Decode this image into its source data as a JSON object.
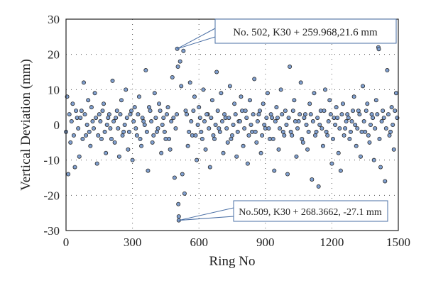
{
  "chart_data": {
    "type": "scatter",
    "xlabel": "Ring No",
    "ylabel": "Vertical Deviation (mm)",
    "xlim": [
      0,
      1500
    ],
    "ylim": [
      -30,
      30
    ],
    "xticks": [
      0,
      300,
      600,
      900,
      1200,
      1500
    ],
    "yticks": [
      -30,
      -20,
      -10,
      0,
      10,
      20,
      30
    ],
    "grid": "dotted",
    "marker_fill": "#7f9fcf",
    "marker_stroke": "#2b2b2b",
    "annotation_color": "#4a6fa5",
    "annotations": [
      {
        "text": "No. 502, K30 + 259.968,21.6 mm",
        "x": 502,
        "y": 21.6
      },
      {
        "text": "No.509, K30 + 268.3662, -27.1 mm",
        "x": 509,
        "y": -27.1
      }
    ],
    "points": [
      [
        0,
        -2
      ],
      [
        5,
        8
      ],
      [
        10,
        -14
      ],
      [
        15,
        3
      ],
      [
        20,
        -5
      ],
      [
        30,
        6
      ],
      [
        40,
        -12
      ],
      [
        50,
        2
      ],
      [
        60,
        -9
      ],
      [
        70,
        4
      ],
      [
        80,
        12
      ],
      [
        90,
        -3
      ],
      [
        100,
        7
      ],
      [
        110,
        -6
      ],
      [
        120,
        1
      ],
      [
        130,
        9
      ],
      [
        140,
        -11
      ],
      [
        150,
        3
      ],
      [
        160,
        -4
      ],
      [
        170,
        6
      ],
      [
        180,
        -8
      ],
      [
        190,
        2
      ],
      [
        200,
        -1
      ],
      [
        210,
        12.5
      ],
      [
        220,
        -5
      ],
      [
        230,
        4
      ],
      [
        240,
        -9
      ],
      [
        250,
        7
      ],
      [
        260,
        -2
      ],
      [
        270,
        10
      ],
      [
        280,
        -7
      ],
      [
        290,
        3
      ],
      [
        300,
        -10
      ],
      [
        310,
        5
      ],
      [
        320,
        -3
      ],
      [
        330,
        8
      ],
      [
        340,
        -6
      ],
      [
        350,
        1
      ],
      [
        360,
        15.5
      ],
      [
        370,
        -13
      ],
      [
        380,
        4
      ],
      [
        390,
        -5
      ],
      [
        400,
        9
      ],
      [
        410,
        -2
      ],
      [
        420,
        6
      ],
      [
        430,
        -8
      ],
      [
        440,
        2
      ],
      [
        450,
        -4
      ],
      [
        460,
        5
      ],
      [
        470,
        -7
      ],
      [
        480,
        13.5
      ],
      [
        490,
        -15
      ],
      [
        500,
        3
      ],
      [
        502,
        21.6
      ],
      [
        505,
        16.5
      ],
      [
        509,
        -27.1
      ],
      [
        509,
        -26
      ],
      [
        507,
        -22.5
      ],
      [
        515,
        18
      ],
      [
        520,
        11
      ],
      [
        525,
        -14
      ],
      [
        530,
        21
      ],
      [
        535,
        -19.5
      ],
      [
        540,
        4
      ],
      [
        550,
        -6
      ],
      [
        560,
        12
      ],
      [
        570,
        -3
      ],
      [
        580,
        8
      ],
      [
        590,
        -10
      ],
      [
        600,
        5
      ],
      [
        610,
        -2
      ],
      [
        620,
        10
      ],
      [
        630,
        -7
      ],
      [
        640,
        3
      ],
      [
        650,
        -12
      ],
      [
        660,
        7
      ],
      [
        670,
        -4
      ],
      [
        680,
        15
      ],
      [
        690,
        -1
      ],
      [
        700,
        9
      ],
      [
        710,
        -8
      ],
      [
        720,
        2
      ],
      [
        730,
        -5
      ],
      [
        740,
        11
      ],
      [
        750,
        -3
      ],
      [
        760,
        6
      ],
      [
        770,
        -9
      ],
      [
        780,
        1
      ],
      [
        790,
        8
      ],
      [
        800,
        -6
      ],
      [
        810,
        4
      ],
      [
        820,
        -11
      ],
      [
        830,
        7
      ],
      [
        840,
        -2
      ],
      [
        850,
        13
      ],
      [
        860,
        -5
      ],
      [
        870,
        3
      ],
      [
        880,
        -8
      ],
      [
        890,
        6
      ],
      [
        900,
        -1
      ],
      [
        910,
        9
      ],
      [
        920,
        -4
      ],
      [
        930,
        2
      ],
      [
        940,
        -13
      ],
      [
        950,
        5
      ],
      [
        960,
        -7
      ],
      [
        970,
        10
      ],
      [
        980,
        -2
      ],
      [
        990,
        4
      ],
      [
        1000,
        -14
      ],
      [
        1010,
        16.5
      ],
      [
        1020,
        -3
      ],
      [
        1030,
        7
      ],
      [
        1040,
        -9
      ],
      [
        1050,
        1
      ],
      [
        1060,
        12
      ],
      [
        1070,
        -5
      ],
      [
        1080,
        3
      ],
      [
        1090,
        -7
      ],
      [
        1100,
        6
      ],
      [
        1110,
        -15.5
      ],
      [
        1120,
        9
      ],
      [
        1130,
        -2
      ],
      [
        1140,
        -17.5
      ],
      [
        1150,
        4
      ],
      [
        1160,
        -6
      ],
      [
        1170,
        10
      ],
      [
        1180,
        -3
      ],
      [
        1190,
        7
      ],
      [
        1200,
        -11
      ],
      [
        1210,
        2
      ],
      [
        1220,
        5
      ],
      [
        1230,
        -8
      ],
      [
        1240,
        -13
      ],
      [
        1250,
        6
      ],
      [
        1260,
        -1
      ],
      [
        1270,
        3
      ],
      [
        1280,
        -4
      ],
      [
        1290,
        1
      ],
      [
        1300,
        8
      ],
      [
        1310,
        -6
      ],
      [
        1320,
        4
      ],
      [
        1330,
        -9
      ],
      [
        1340,
        11
      ],
      [
        1350,
        -2
      ],
      [
        1360,
        6
      ],
      [
        1370,
        -5
      ],
      [
        1380,
        3
      ],
      [
        1390,
        -10
      ],
      [
        1400,
        7
      ],
      [
        1410,
        22
      ],
      [
        1412,
        21.5
      ],
      [
        1420,
        -12
      ],
      [
        1430,
        4
      ],
      [
        1440,
        -16
      ],
      [
        1450,
        15.5
      ],
      [
        1460,
        -3
      ],
      [
        1470,
        5
      ],
      [
        1480,
        -7
      ],
      [
        1490,
        9
      ],
      [
        1495,
        2
      ],
      [
        25,
        1
      ],
      [
        35,
        -3
      ],
      [
        45,
        4
      ],
      [
        55,
        -1
      ],
      [
        65,
        2
      ],
      [
        75,
        -4
      ],
      [
        85,
        3
      ],
      [
        95,
        0
      ],
      [
        105,
        -2
      ],
      [
        115,
        5
      ],
      [
        125,
        -1
      ],
      [
        135,
        2
      ],
      [
        145,
        -3
      ],
      [
        155,
        1
      ],
      [
        165,
        4
      ],
      [
        175,
        -2
      ],
      [
        185,
        0
      ],
      [
        195,
        3
      ],
      [
        205,
        -4
      ],
      [
        215,
        1
      ],
      [
        225,
        2
      ],
      [
        235,
        -1
      ],
      [
        245,
        3
      ],
      [
        255,
        -3
      ],
      [
        265,
        0
      ],
      [
        275,
        2
      ],
      [
        285,
        -2
      ],
      [
        295,
        4
      ],
      [
        305,
        1
      ],
      [
        315,
        -1
      ],
      [
        325,
        3
      ],
      [
        335,
        -4
      ],
      [
        345,
        2
      ],
      [
        355,
        0
      ],
      [
        365,
        -2
      ],
      [
        375,
        5
      ],
      [
        385,
        1
      ],
      [
        395,
        -3
      ],
      [
        405,
        2
      ],
      [
        415,
        -1
      ],
      [
        425,
        4
      ],
      [
        435,
        0
      ],
      [
        445,
        -2
      ],
      [
        455,
        3
      ],
      [
        465,
        -4
      ],
      [
        475,
        1
      ],
      [
        485,
        2
      ],
      [
        495,
        -1
      ],
      [
        545,
        3
      ],
      [
        555,
        -2
      ],
      [
        565,
        1
      ],
      [
        575,
        4
      ],
      [
        585,
        -3
      ],
      [
        595,
        0
      ],
      [
        605,
        2
      ],
      [
        615,
        -4
      ],
      [
        625,
        1
      ],
      [
        635,
        3
      ],
      [
        645,
        -1
      ],
      [
        655,
        2
      ],
      [
        665,
        -3
      ],
      [
        675,
        0
      ],
      [
        685,
        4
      ],
      [
        695,
        -2
      ],
      [
        705,
        1
      ],
      [
        715,
        3
      ],
      [
        725,
        -1
      ],
      [
        735,
        2
      ],
      [
        745,
        -4
      ],
      [
        755,
        0
      ],
      [
        765,
        3
      ],
      [
        775,
        -2
      ],
      [
        785,
        1
      ],
      [
        795,
        4
      ],
      [
        805,
        -1
      ],
      [
        815,
        2
      ],
      [
        825,
        -3
      ],
      [
        835,
        0
      ],
      [
        845,
        3
      ],
      [
        855,
        -2
      ],
      [
        865,
        1
      ],
      [
        875,
        4
      ],
      [
        885,
        -3
      ],
      [
        895,
        0
      ],
      [
        905,
        2
      ],
      [
        915,
        -1
      ],
      [
        925,
        3
      ],
      [
        935,
        -4
      ],
      [
        945,
        1
      ],
      [
        955,
        2
      ],
      [
        965,
        -1
      ],
      [
        975,
        3
      ],
      [
        985,
        -3
      ],
      [
        995,
        0
      ],
      [
        1005,
        2
      ],
      [
        1015,
        -2
      ],
      [
        1025,
        4
      ],
      [
        1035,
        1
      ],
      [
        1045,
        -1
      ],
      [
        1055,
        3
      ],
      [
        1065,
        -4
      ],
      [
        1075,
        2
      ],
      [
        1085,
        0
      ],
      [
        1095,
        -2
      ],
      [
        1105,
        3
      ],
      [
        1115,
        1
      ],
      [
        1125,
        -3
      ],
      [
        1135,
        2
      ],
      [
        1145,
        0
      ],
      [
        1155,
        -1
      ],
      [
        1165,
        4
      ],
      [
        1175,
        -2
      ],
      [
        1185,
        1
      ],
      [
        1195,
        3
      ],
      [
        1205,
        -4
      ],
      [
        1215,
        0
      ],
      [
        1225,
        2
      ],
      [
        1235,
        -1
      ],
      [
        1245,
        3
      ],
      [
        1255,
        -3
      ],
      [
        1265,
        1
      ],
      [
        1275,
        2
      ],
      [
        1285,
        -2
      ],
      [
        1295,
        4
      ],
      [
        1305,
        0
      ],
      [
        1315,
        -1
      ],
      [
        1325,
        3
      ],
      [
        1335,
        -2
      ],
      [
        1345,
        1
      ],
      [
        1355,
        4
      ],
      [
        1365,
        -3
      ],
      [
        1375,
        0
      ],
      [
        1385,
        2
      ],
      [
        1395,
        -1
      ],
      [
        1405,
        3
      ],
      [
        1415,
        -4
      ],
      [
        1425,
        1
      ],
      [
        1435,
        2
      ],
      [
        1445,
        -1
      ],
      [
        1455,
        3
      ],
      [
        1465,
        -2
      ],
      [
        1475,
        0
      ],
      [
        1485,
        4
      ]
    ]
  }
}
